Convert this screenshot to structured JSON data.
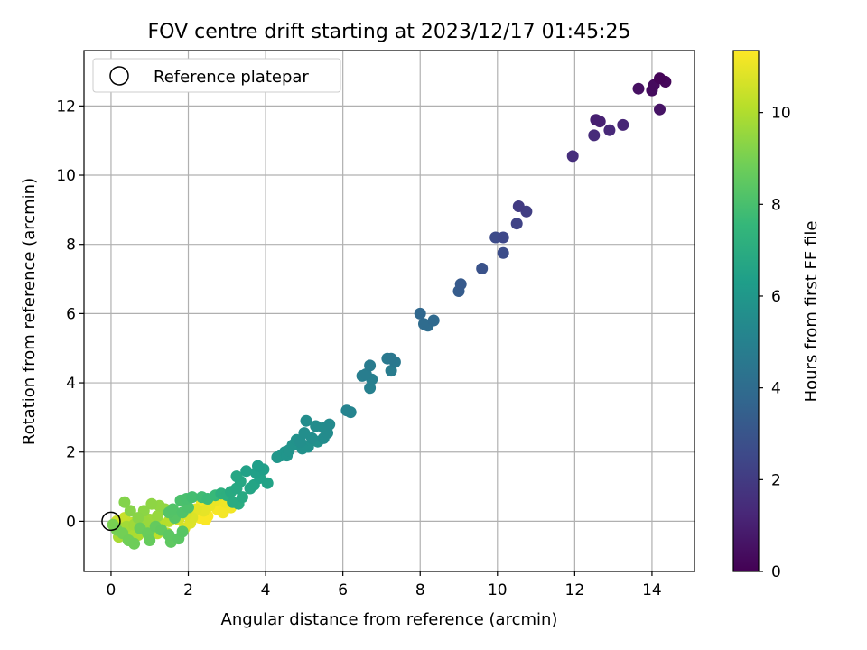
{
  "chart_data": {
    "type": "scatter",
    "title": "FOV centre drift starting at 2023/12/17 01:45:25",
    "xlabel": "Angular distance from reference (arcmin)",
    "ylabel": "Rotation from reference (arcmin)",
    "xlim": [
      -0.7,
      15.1
    ],
    "ylim": [
      -1.45,
      13.6
    ],
    "xticks": [
      0,
      2,
      4,
      6,
      8,
      10,
      12,
      14
    ],
    "yticks": [
      0,
      2,
      4,
      6,
      8,
      10,
      12
    ],
    "grid": true,
    "legend": {
      "placement": "top-left",
      "entries": [
        "Reference platepar"
      ]
    },
    "reference_point": {
      "x": 0,
      "y": 0
    },
    "colorbar": {
      "label": "Hours from first FF file",
      "colormap": "viridis",
      "range": [
        0,
        11.35
      ],
      "ticks": [
        0,
        2,
        4,
        6,
        8,
        10
      ],
      "stops": [
        "#440154",
        "#482878",
        "#3e4989",
        "#31688e",
        "#26828e",
        "#1f9e89",
        "#35b779",
        "#6ece58",
        "#b5de2b",
        "#fde725"
      ]
    },
    "points": [
      [
        14.2,
        12.8,
        0.1
      ],
      [
        14.35,
        12.7,
        0.2
      ],
      [
        14.05,
        12.6,
        0.3
      ],
      [
        14.0,
        12.45,
        0.35
      ],
      [
        13.65,
        12.5,
        0.5
      ],
      [
        14.2,
        11.9,
        0.6
      ],
      [
        12.55,
        11.6,
        1.0
      ],
      [
        12.65,
        11.55,
        1.05
      ],
      [
        13.25,
        11.45,
        1.2
      ],
      [
        12.9,
        11.3,
        1.3
      ],
      [
        12.5,
        11.15,
        1.4
      ],
      [
        11.95,
        10.55,
        1.5
      ],
      [
        10.55,
        9.1,
        2.0
      ],
      [
        10.75,
        8.95,
        2.1
      ],
      [
        10.5,
        8.6,
        2.3
      ],
      [
        10.15,
        8.2,
        2.5
      ],
      [
        9.95,
        8.2,
        2.6
      ],
      [
        10.15,
        7.75,
        2.7
      ],
      [
        9.6,
        7.3,
        2.9
      ],
      [
        9.05,
        6.85,
        3.2
      ],
      [
        9.0,
        6.65,
        3.3
      ],
      [
        8.0,
        6.0,
        3.8
      ],
      [
        8.35,
        5.8,
        3.9
      ],
      [
        8.1,
        5.7,
        4.0
      ],
      [
        8.2,
        5.65,
        4.05
      ],
      [
        7.25,
        4.7,
        4.5
      ],
      [
        7.35,
        4.6,
        4.55
      ],
      [
        7.15,
        4.7,
        4.6
      ],
      [
        6.7,
        4.5,
        4.7
      ],
      [
        7.25,
        4.35,
        4.75
      ],
      [
        6.6,
        4.25,
        4.8
      ],
      [
        6.5,
        4.2,
        4.85
      ],
      [
        6.75,
        4.1,
        4.9
      ],
      [
        6.7,
        3.85,
        4.95
      ],
      [
        6.1,
        3.2,
        5.1
      ],
      [
        6.2,
        3.15,
        5.15
      ],
      [
        5.65,
        2.8,
        5.4
      ],
      [
        5.6,
        2.55,
        5.45
      ],
      [
        5.5,
        2.7,
        5.5
      ],
      [
        5.3,
        2.75,
        5.5
      ],
      [
        5.05,
        2.9,
        5.55
      ],
      [
        5.2,
        2.4,
        5.6
      ],
      [
        5.0,
        2.55,
        5.6
      ],
      [
        4.9,
        2.3,
        5.65
      ],
      [
        5.1,
        2.15,
        5.7
      ],
      [
        5.35,
        2.3,
        5.7
      ],
      [
        4.8,
        2.35,
        5.75
      ],
      [
        4.7,
        2.2,
        5.8
      ],
      [
        4.6,
        2.05,
        5.85
      ],
      [
        4.5,
        2.0,
        5.9
      ],
      [
        4.55,
        1.9,
        5.9
      ],
      [
        4.3,
        1.85,
        5.95
      ],
      [
        4.4,
        1.9,
        6.0
      ],
      [
        4.95,
        2.1,
        5.7
      ],
      [
        5.5,
        2.4,
        5.5
      ],
      [
        3.8,
        1.6,
        6.3
      ],
      [
        3.95,
        1.5,
        6.35
      ],
      [
        3.75,
        1.4,
        6.4
      ],
      [
        3.5,
        1.45,
        6.45
      ],
      [
        3.85,
        1.25,
        6.5
      ],
      [
        4.05,
        1.1,
        6.55
      ],
      [
        3.7,
        1.05,
        6.6
      ],
      [
        3.6,
        0.95,
        6.65
      ],
      [
        3.25,
        1.3,
        6.7
      ],
      [
        3.35,
        1.15,
        6.75
      ],
      [
        3.25,
        0.95,
        6.8
      ],
      [
        3.4,
        0.7,
        6.85
      ],
      [
        3.1,
        0.85,
        6.9
      ],
      [
        3.15,
        0.55,
        6.95
      ],
      [
        3.3,
        0.5,
        7.0
      ],
      [
        3.0,
        0.75,
        7.1
      ],
      [
        2.85,
        0.8,
        7.15
      ],
      [
        2.7,
        0.75,
        7.6
      ],
      [
        2.5,
        0.65,
        7.7
      ],
      [
        2.35,
        0.7,
        7.8
      ],
      [
        2.1,
        0.7,
        7.9
      ],
      [
        1.95,
        0.65,
        8.0
      ],
      [
        1.8,
        0.6,
        8.05
      ],
      [
        2.0,
        0.4,
        8.1
      ],
      [
        1.85,
        0.25,
        8.15
      ],
      [
        1.6,
        0.35,
        8.2
      ],
      [
        1.5,
        0.25,
        8.25
      ],
      [
        1.65,
        0.1,
        8.3
      ],
      [
        1.85,
        -0.3,
        8.35
      ],
      [
        1.75,
        -0.5,
        8.4
      ],
      [
        1.5,
        -0.4,
        8.45
      ],
      [
        1.55,
        -0.6,
        8.5
      ],
      [
        1.3,
        -0.25,
        8.55
      ],
      [
        1.15,
        -0.15,
        8.6
      ],
      [
        1.0,
        -0.55,
        8.65
      ],
      [
        0.95,
        -0.35,
        8.7
      ],
      [
        0.75,
        -0.2,
        8.75
      ],
      [
        0.6,
        -0.65,
        8.8
      ],
      [
        0.45,
        -0.55,
        8.85
      ],
      [
        0.3,
        -0.35,
        8.9
      ],
      [
        0.15,
        -0.25,
        8.95
      ],
      [
        0.05,
        -0.1,
        9.0
      ],
      [
        0.35,
        0.55,
        9.2
      ],
      [
        0.5,
        0.3,
        9.25
      ],
      [
        0.7,
        0.1,
        9.3
      ],
      [
        0.85,
        0.3,
        9.35
      ],
      [
        1.05,
        0.5,
        9.4
      ],
      [
        1.25,
        0.45,
        9.45
      ],
      [
        1.4,
        0.35,
        9.5
      ],
      [
        1.2,
        0.15,
        9.55
      ],
      [
        0.9,
        -0.05,
        9.6
      ],
      [
        1.0,
        0.05,
        9.65
      ],
      [
        0.6,
        -0.1,
        9.7
      ],
      [
        0.4,
        -0.15,
        9.75
      ],
      [
        0.25,
        -0.2,
        9.8
      ],
      [
        0.2,
        -0.45,
        9.85
      ],
      [
        0.5,
        -0.3,
        9.9
      ],
      [
        0.7,
        -0.4,
        9.95
      ],
      [
        0.85,
        -0.3,
        10.0
      ],
      [
        1.1,
        -0.2,
        10.05
      ],
      [
        1.3,
        -0.1,
        10.1
      ],
      [
        1.5,
        0.0,
        10.15
      ],
      [
        1.45,
        -0.35,
        10.2
      ],
      [
        1.2,
        -0.35,
        10.25
      ],
      [
        0.8,
        -0.15,
        10.3
      ],
      [
        0.55,
        -0.05,
        10.35
      ],
      [
        0.35,
        0.1,
        10.4
      ],
      [
        0.15,
        0.0,
        10.45
      ],
      [
        0.3,
        -0.25,
        10.5
      ],
      [
        1.6,
        0.2,
        10.6
      ],
      [
        1.75,
        0.05,
        10.65
      ],
      [
        1.95,
        0.2,
        10.7
      ],
      [
        2.1,
        0.1,
        10.75
      ],
      [
        2.05,
        -0.05,
        10.8
      ],
      [
        1.9,
        -0.2,
        10.85
      ],
      [
        2.2,
        0.35,
        10.9
      ],
      [
        2.4,
        0.3,
        10.95
      ],
      [
        2.55,
        0.45,
        11.0
      ],
      [
        2.7,
        0.6,
        11.05
      ],
      [
        2.95,
        0.55,
        11.1
      ],
      [
        3.1,
        0.4,
        11.15
      ],
      [
        2.9,
        0.25,
        11.2
      ],
      [
        2.75,
        0.35,
        11.25
      ],
      [
        2.5,
        0.15,
        11.3
      ],
      [
        2.45,
        0.05,
        11.3
      ],
      [
        2.3,
        0.1,
        11.32
      ],
      [
        2.6,
        0.5,
        11.28
      ],
      [
        2.8,
        0.45,
        11.22
      ],
      [
        2.35,
        0.55,
        11.18
      ]
    ]
  }
}
